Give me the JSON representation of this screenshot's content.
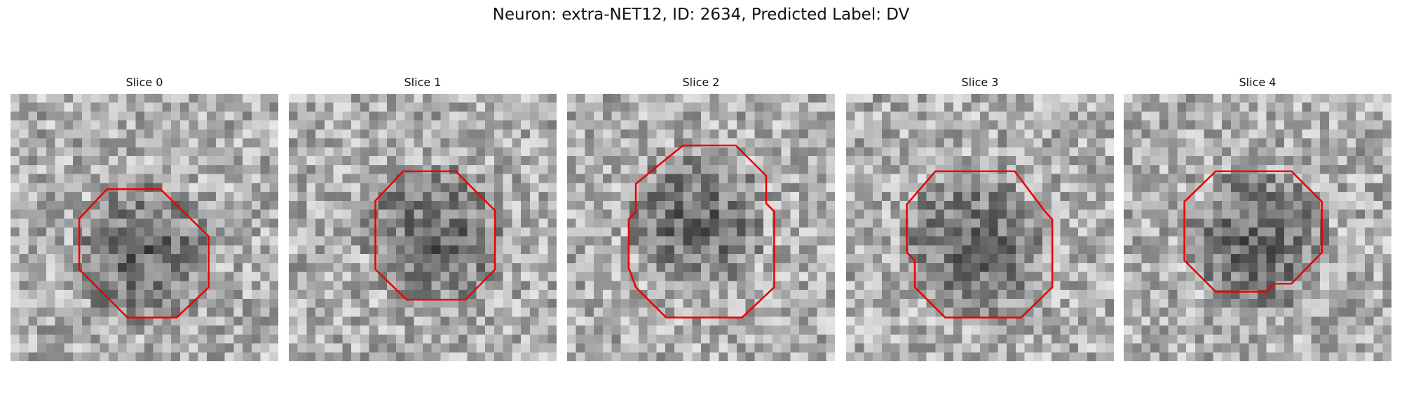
{
  "title": "Neuron: extra-NET12, ID: 2634, Predicted Label: DV",
  "slices": [
    {
      "title": "Slice 0"
    },
    {
      "title": "Slice 1"
    },
    {
      "title": "Slice 2"
    },
    {
      "title": "Slice 3"
    },
    {
      "title": "Slice 4"
    }
  ]
}
